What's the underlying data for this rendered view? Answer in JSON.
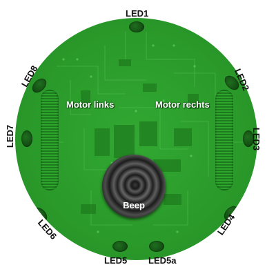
{
  "board": {
    "board_color": "#2a9a2a",
    "led_color": "#134d13"
  },
  "leds": {
    "led1": "LED1",
    "led2": "LED2",
    "led3": "LED3",
    "led4": "LED4",
    "led5": "LED5",
    "led5a": "LED5a",
    "led6": "LED6",
    "led7": "LED7",
    "led8": "LED8"
  },
  "motors": {
    "left": "Motor links",
    "right": "Motor rechts"
  },
  "buzzer": {
    "label": "Beep"
  }
}
